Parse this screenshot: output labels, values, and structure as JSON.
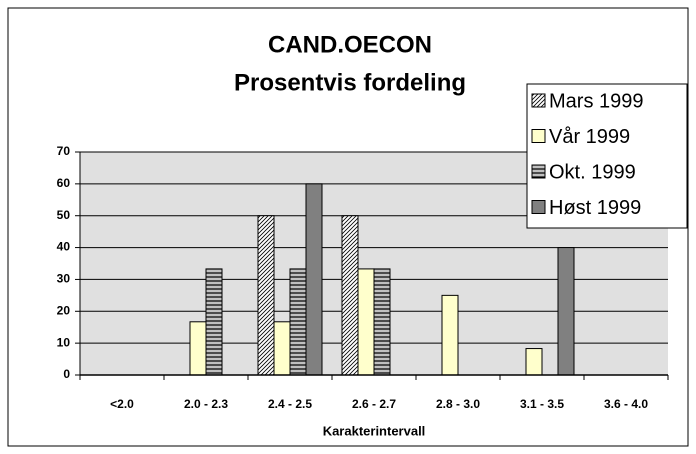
{
  "chart_data": {
    "type": "bar",
    "title": [
      "CAND.OECON",
      "Prosentvis fordeling"
    ],
    "x_label": "Karakterintervall",
    "categories": [
      "<2.0",
      "2.0 - 2.3",
      "2.4 - 2.5",
      "2.6 - 2.7",
      "2.8 - 3.0",
      "3.1 - 3.5",
      "3.6 - 4.0"
    ],
    "series": [
      {
        "name": "Mars 1999",
        "color": "#ffffff",
        "pattern": "diagonal",
        "values": [
          0,
          0,
          50,
          50,
          0,
          0,
          0
        ]
      },
      {
        "name": "Vår 1999",
        "color": "#ffffcc",
        "pattern": "solid",
        "values": [
          0,
          16.7,
          16.7,
          33.3,
          25,
          8.3,
          0
        ]
      },
      {
        "name": "Okt. 1999",
        "color": "#c0c0c0",
        "pattern": "horizontal",
        "values": [
          0,
          33.3,
          33.3,
          33.3,
          0,
          0,
          0
        ]
      },
      {
        "name": "Høst 1999",
        "color": "#808080",
        "pattern": "solid",
        "values": [
          0,
          0,
          60,
          0,
          0,
          40,
          0
        ]
      }
    ],
    "ylim": [
      0,
      70
    ],
    "yticks": [
      0,
      10,
      20,
      30,
      40,
      50,
      60,
      70
    ],
    "grid": true,
    "legend": "top-right"
  }
}
